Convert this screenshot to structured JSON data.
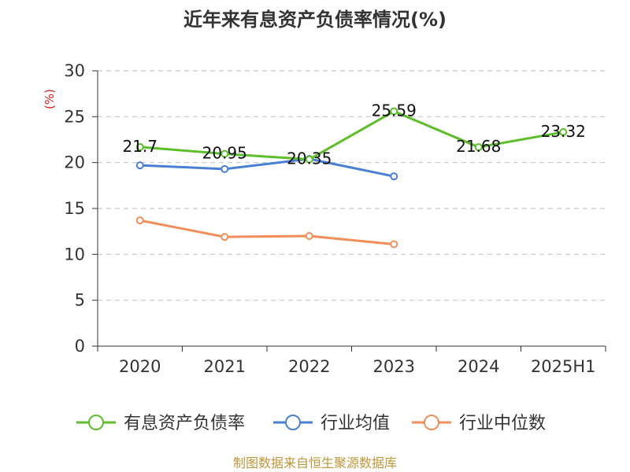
{
  "chart_data": {
    "type": "line",
    "title": "近年来有息资产负债率情况(%)",
    "unit_label": "(%)",
    "categories": [
      "2020",
      "2021",
      "2022",
      "2023",
      "2024",
      "2025H1"
    ],
    "ylim": [
      0,
      30
    ],
    "yticks": [
      0,
      5,
      10,
      15,
      20,
      25,
      30
    ],
    "grid": true,
    "legend_position": "bottom",
    "series": [
      {
        "name": "有息资产负债率",
        "color": "#5cbf2a",
        "values": [
          21.7,
          20.95,
          20.35,
          25.59,
          21.68,
          23.32
        ],
        "labels": [
          "21.7",
          "20.95",
          "20.35",
          "25.59",
          "21.68",
          "23.32"
        ]
      },
      {
        "name": "行业均值",
        "color": "#4a7fd6",
        "values": [
          19.7,
          19.3,
          20.4,
          18.5,
          null,
          null
        ]
      },
      {
        "name": "行业中位数",
        "color": "#f28e5a",
        "values": [
          13.7,
          11.9,
          12.0,
          11.1,
          null,
          null
        ]
      }
    ]
  },
  "source": "制图数据来自恒生聚源数据库"
}
